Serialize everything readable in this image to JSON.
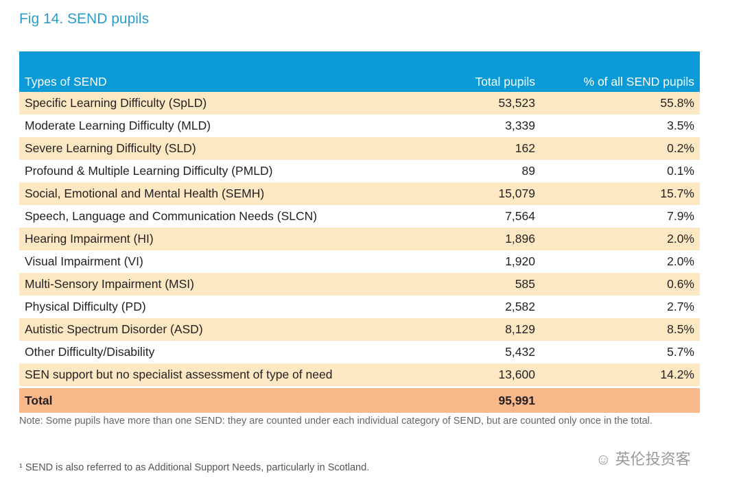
{
  "title": "Fig 14. SEND pupils",
  "headers": [
    "Types of SEND",
    "Total pupils",
    "% of all SEND pupils"
  ],
  "rows": [
    [
      "Specific Learning Difficulty (SpLD)",
      "53,523",
      "55.8%"
    ],
    [
      "Moderate Learning Difficulty (MLD)",
      "3,339",
      "3.5%"
    ],
    [
      "Severe Learning Difficulty (SLD)",
      "162",
      "0.2%"
    ],
    [
      "Profound & Multiple Learning Difficulty (PMLD)",
      "89",
      "0.1%"
    ],
    [
      "Social, Emotional and Mental Health (SEMH)",
      "15,079",
      "15.7%"
    ],
    [
      "Speech, Language and Communication Needs (SLCN)",
      "7,564",
      "7.9%"
    ],
    [
      "Hearing Impairment (HI)",
      "1,896",
      "2.0%"
    ],
    [
      "Visual Impairment (VI)",
      "1,920",
      "2.0%"
    ],
    [
      "Multi-Sensory Impairment (MSI)",
      "585",
      "0.6%"
    ],
    [
      "Physical Difficulty (PD)",
      "2,582",
      "2.7%"
    ],
    [
      "Autistic Spectrum Disorder (ASD)",
      "8,129",
      "8.5%"
    ],
    [
      "Other Difficulty/Disability",
      "5,432",
      "5.7%"
    ],
    [
      "SEN support but no specialist assessment of type of need",
      "13,600",
      "14.2%"
    ]
  ],
  "total": {
    "label": "Total",
    "value": "95,991"
  },
  "note": "Note: Some pupils have more than one SEND: they are counted under each individual category of SEND, but are counted only once in the total.",
  "footnote": "¹ SEND is also referred to as Additional Support Needs, particularly in Scotland.",
  "watermark": "英伦投资客"
}
